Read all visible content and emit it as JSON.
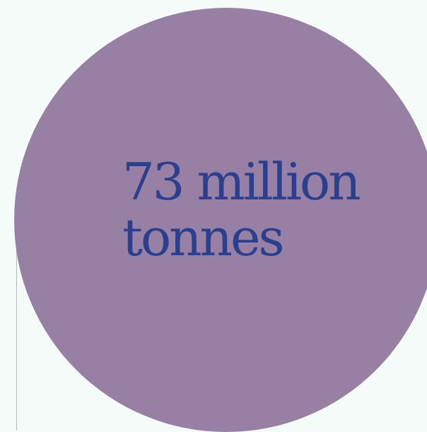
{
  "stat": {
    "line1": "73 million",
    "line2": "tonnes"
  },
  "colors": {
    "background": "#f5fbf9",
    "circle": "#9880a5",
    "text": "#2b3f8f",
    "rule": "#b9b9b9"
  }
}
